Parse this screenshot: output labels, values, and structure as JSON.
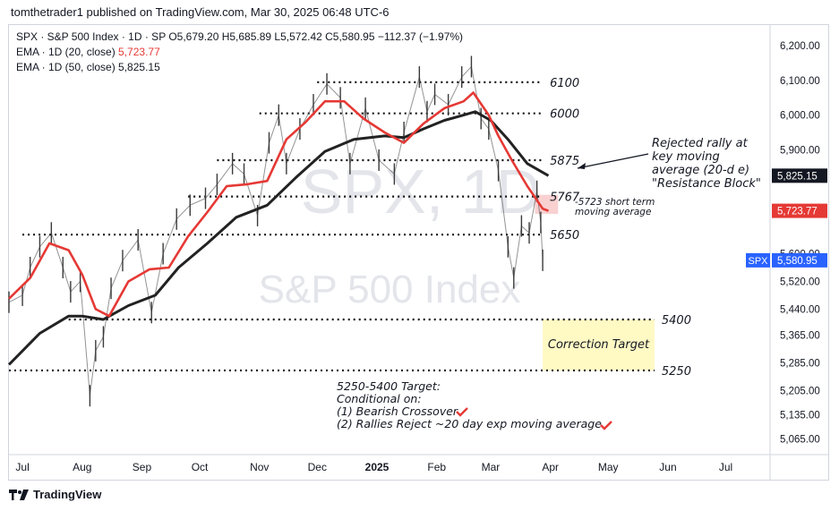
{
  "header": {
    "publish_line": "tomthetrader1 published on TradingView.com, Mar 30, 2025 06:48 UTC-6"
  },
  "legend": {
    "symbol_line": "SPX · S&P 500 Index · 1D · SP",
    "ohlc": "O5,679.20 H5,685.89 L5,572.42 C5,580.95 −112.37 (−1.97%)",
    "ema20_label": "EMA · 1D (20, close)",
    "ema20_value": "5,723.77",
    "ema50_label": "EMA · 1D (50, close)",
    "ema50_value": "5,825.15"
  },
  "watermark": {
    "symbol": "SPX, 1D",
    "name": "S&P 500 Index"
  },
  "footer": {
    "brand": "TradingView"
  },
  "colors": {
    "ema20": "#e53935",
    "ema50": "#222222",
    "candle": "#3a3a3a",
    "price_tag": "#2962ff",
    "correction_box": "#fff9c4",
    "resistance_box": "#f7c6c6"
  },
  "chart_data": {
    "type": "line",
    "title": "",
    "ylim": [
      5020,
      6260
    ],
    "y_ticks": [
      "6,200.00",
      "6,100.00",
      "6,000.00",
      "5,900.00",
      "5,600.00",
      "5,520.00",
      "5,440.00",
      "5,365.00",
      "5,285.00",
      "5,205.00",
      "5,135.00",
      "5,065.00"
    ],
    "x_ticks": [
      "Jul",
      "Aug",
      "Sep",
      "Oct",
      "Nov",
      "Dec",
      "2025",
      "Feb",
      "Mar",
      "Apr",
      "May",
      "Jun",
      "Jul"
    ],
    "x_tick_dates": [
      "2024-07-01",
      "2024-08-01",
      "2024-09-01",
      "2024-10-01",
      "2024-11-01",
      "2024-12-01",
      "2025-01-01",
      "2025-02-01",
      "2025-03-01",
      "2025-04-01",
      "2025-05-01",
      "2025-06-01",
      "2025-07-01"
    ],
    "x_range": [
      "2024-06-24",
      "2025-07-24"
    ],
    "series": [
      {
        "name": "EMA · 1D (20, close)",
        "color": "#e53935",
        "points": [
          [
            "2024-06-24",
            5470
          ],
          [
            "2024-07-05",
            5530
          ],
          [
            "2024-07-15",
            5630
          ],
          [
            "2024-07-25",
            5610
          ],
          [
            "2024-08-01",
            5540
          ],
          [
            "2024-08-08",
            5440
          ],
          [
            "2024-08-15",
            5420
          ],
          [
            "2024-08-25",
            5520
          ],
          [
            "2024-09-05",
            5555
          ],
          [
            "2024-09-15",
            5560
          ],
          [
            "2024-09-25",
            5650
          ],
          [
            "2024-10-05",
            5720
          ],
          [
            "2024-10-15",
            5795
          ],
          [
            "2024-10-25",
            5800
          ],
          [
            "2024-11-05",
            5810
          ],
          [
            "2024-11-15",
            5930
          ],
          [
            "2024-11-25",
            5980
          ],
          [
            "2024-12-05",
            6040
          ],
          [
            "2024-12-15",
            6040
          ],
          [
            "2024-12-25",
            5990
          ],
          [
            "2025-01-05",
            5950
          ],
          [
            "2025-01-15",
            5920
          ],
          [
            "2025-01-25",
            5975
          ],
          [
            "2025-02-05",
            6020
          ],
          [
            "2025-02-15",
            6040
          ],
          [
            "2025-02-20",
            6065
          ],
          [
            "2025-02-28",
            6000
          ],
          [
            "2025-03-05",
            5940
          ],
          [
            "2025-03-12",
            5870
          ],
          [
            "2025-03-20",
            5795
          ],
          [
            "2025-03-28",
            5730
          ],
          [
            "2025-03-31",
            5723.77
          ]
        ]
      },
      {
        "name": "EMA · 1D (50, close)",
        "color": "#222222",
        "points": [
          [
            "2024-06-24",
            5280
          ],
          [
            "2024-07-10",
            5370
          ],
          [
            "2024-07-25",
            5420
          ],
          [
            "2024-08-01",
            5420
          ],
          [
            "2024-08-12",
            5410
          ],
          [
            "2024-08-25",
            5450
          ],
          [
            "2024-09-08",
            5480
          ],
          [
            "2024-09-20",
            5560
          ],
          [
            "2024-10-05",
            5630
          ],
          [
            "2024-10-20",
            5705
          ],
          [
            "2024-11-05",
            5740
          ],
          [
            "2024-11-20",
            5820
          ],
          [
            "2024-12-05",
            5895
          ],
          [
            "2024-12-20",
            5930
          ],
          [
            "2025-01-05",
            5940
          ],
          [
            "2025-01-15",
            5935
          ],
          [
            "2025-01-25",
            5960
          ],
          [
            "2025-02-05",
            5985
          ],
          [
            "2025-02-15",
            6000
          ],
          [
            "2025-02-21",
            6010
          ],
          [
            "2025-03-01",
            5985
          ],
          [
            "2025-03-10",
            5930
          ],
          [
            "2025-03-20",
            5860
          ],
          [
            "2025-03-31",
            5825.15
          ]
        ]
      },
      {
        "name": "SPX · S&P 500 Index · 1D · SP",
        "color": "#3a3a3a",
        "points": [
          [
            "2024-06-24",
            5460
          ],
          [
            "2024-07-01",
            5480
          ],
          [
            "2024-07-05",
            5560
          ],
          [
            "2024-07-10",
            5620
          ],
          [
            "2024-07-16",
            5660
          ],
          [
            "2024-07-22",
            5560
          ],
          [
            "2024-07-26",
            5490
          ],
          [
            "2024-07-31",
            5520
          ],
          [
            "2024-08-05",
            5190
          ],
          [
            "2024-08-08",
            5320
          ],
          [
            "2024-08-12",
            5360
          ],
          [
            "2024-08-16",
            5500
          ],
          [
            "2024-08-22",
            5580
          ],
          [
            "2024-08-30",
            5640
          ],
          [
            "2024-09-06",
            5430
          ],
          [
            "2024-09-12",
            5600
          ],
          [
            "2024-09-19",
            5700
          ],
          [
            "2024-09-26",
            5740
          ],
          [
            "2024-10-04",
            5760
          ],
          [
            "2024-10-10",
            5800
          ],
          [
            "2024-10-18",
            5860
          ],
          [
            "2024-10-24",
            5830
          ],
          [
            "2024-10-31",
            5710
          ],
          [
            "2024-11-06",
            5920
          ],
          [
            "2024-11-11",
            6000
          ],
          [
            "2024-11-15",
            5860
          ],
          [
            "2024-11-22",
            5960
          ],
          [
            "2024-11-29",
            6030
          ],
          [
            "2024-12-06",
            6090
          ],
          [
            "2024-12-13",
            6050
          ],
          [
            "2024-12-18",
            5860
          ],
          [
            "2024-12-26",
            6020
          ],
          [
            "2025-01-02",
            5870
          ],
          [
            "2025-01-10",
            5830
          ],
          [
            "2025-01-15",
            5950
          ],
          [
            "2025-01-23",
            6110
          ],
          [
            "2025-01-27",
            6010
          ],
          [
            "2025-01-31",
            6060
          ],
          [
            "2025-02-07",
            6030
          ],
          [
            "2025-02-14",
            6110
          ],
          [
            "2025-02-19",
            6140
          ],
          [
            "2025-02-24",
            5990
          ],
          [
            "2025-02-28",
            5960
          ],
          [
            "2025-03-05",
            5840
          ],
          [
            "2025-03-10",
            5620
          ],
          [
            "2025-03-13",
            5530
          ],
          [
            "2025-03-17",
            5680
          ],
          [
            "2025-03-21",
            5660
          ],
          [
            "2025-03-25",
            5780
          ],
          [
            "2025-03-27",
            5690
          ],
          [
            "2025-03-28",
            5580.95
          ]
        ]
      }
    ],
    "horizontal_levels": [
      {
        "label": "6100",
        "value": 6095,
        "from": "2024-12-01",
        "to": "2025-03-28"
      },
      {
        "label": "6000",
        "value": 6005,
        "from": "2024-11-01",
        "to": "2025-03-28"
      },
      {
        "label": "5875",
        "value": 5870,
        "from": "2024-10-10",
        "to": "2025-03-28"
      },
      {
        "label": "5767",
        "value": 5765,
        "from": "2024-09-25",
        "to": "2025-03-28"
      },
      {
        "label": "5650",
        "value": 5655,
        "from": "2024-07-01",
        "to": "2025-03-28"
      },
      {
        "label": "5400",
        "value": 5410,
        "from": "2024-07-25",
        "to": "2025-05-25"
      },
      {
        "label": "5250",
        "value": 5263,
        "from": "2024-06-24",
        "to": "2025-05-25"
      }
    ],
    "annotations": {
      "rejected_rally": [
        "Rejected rally at",
        "key moving",
        "average (20-d e)",
        "\"Resistance Block\""
      ],
      "short_term": [
        "-5723 short term",
        "moving average"
      ],
      "correction_target": "Correction Target",
      "target_notes": [
        "5250-5400 Target:",
        "Conditional on:",
        "(1) Bearish Crossover",
        "(2) Rallies Reject ~20 day exp moving average"
      ]
    },
    "price_tags": [
      {
        "text": "5,825.15",
        "value": 5825.15
      },
      {
        "text": "5,723.77",
        "value": 5723.77
      },
      {
        "symbol": "SPX",
        "text": "5,580.95",
        "value": 5580.95
      }
    ],
    "resistance_block": {
      "from": "2025-03-24",
      "to": "2025-04-05",
      "y1": 5715,
      "y2": 5770
    },
    "correction_zone": {
      "from": "2025-03-28",
      "to": "2025-05-25",
      "y1": 5263,
      "y2": 5410
    }
  }
}
